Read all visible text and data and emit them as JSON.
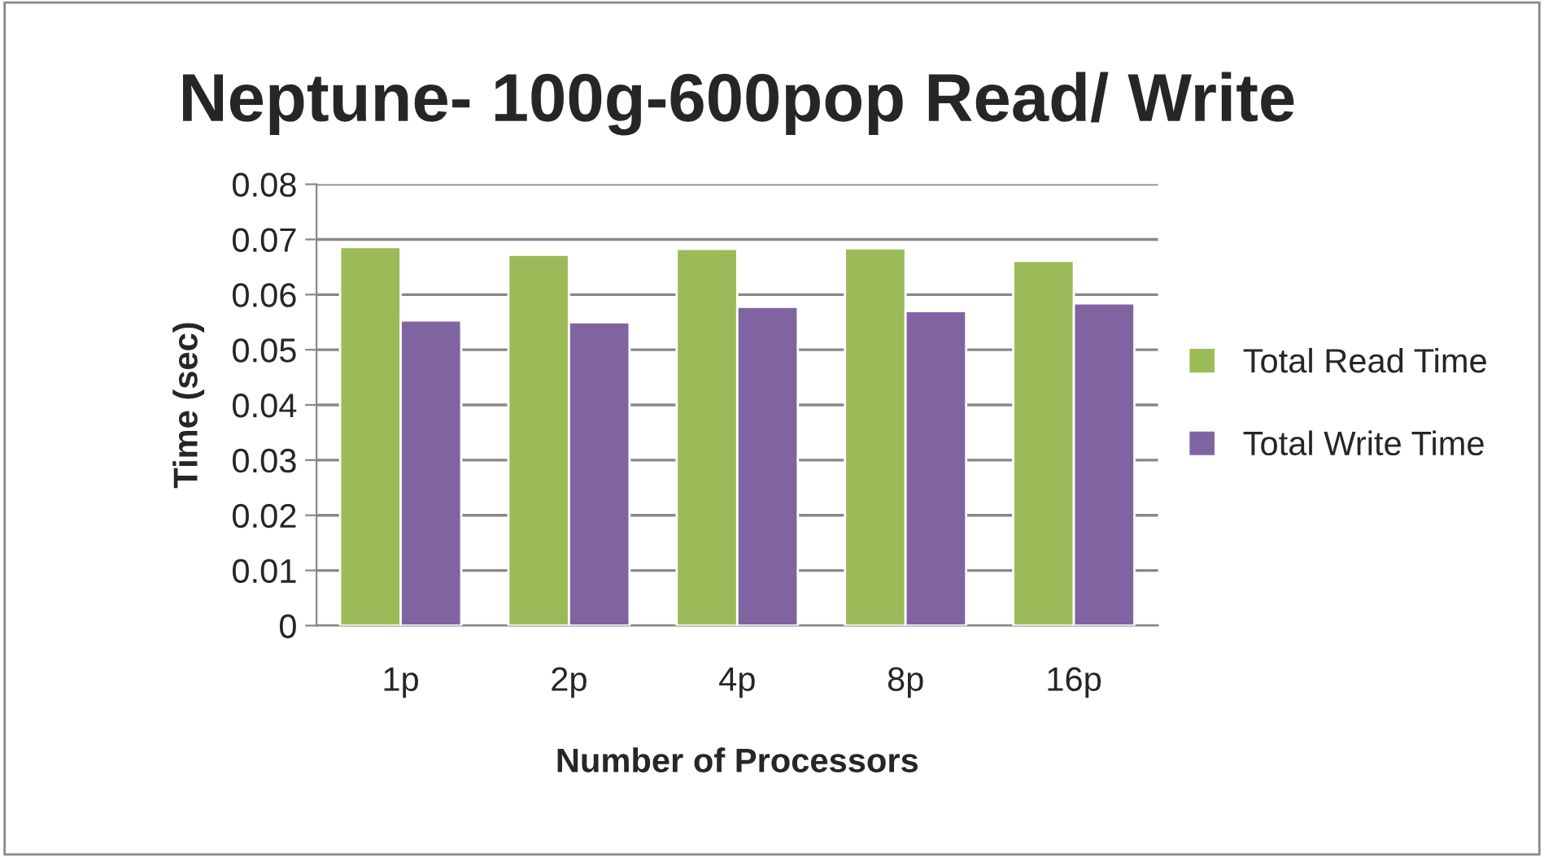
{
  "chart_data": {
    "type": "bar",
    "title": "Neptune- 100g-600pop Read/ Write",
    "xlabel": "Number of Processors",
    "ylabel": "Time (sec)",
    "categories": [
      "1p",
      "2p",
      "4p",
      "8p",
      "16p"
    ],
    "series": [
      {
        "name": "Total Read Time",
        "color": "#9bbb59",
        "values": [
          0.0686,
          0.0672,
          0.0683,
          0.0684,
          0.0661
        ]
      },
      {
        "name": "Total Write Time",
        "color": "#8064a2",
        "values": [
          0.0553,
          0.055,
          0.0578,
          0.057,
          0.0584
        ]
      }
    ],
    "ylim": [
      0,
      0.08
    ],
    "yticks": [
      0,
      0.01,
      0.02,
      0.03,
      0.04,
      0.05,
      0.06,
      0.07,
      0.08
    ],
    "grid": "y",
    "legend": "right"
  }
}
